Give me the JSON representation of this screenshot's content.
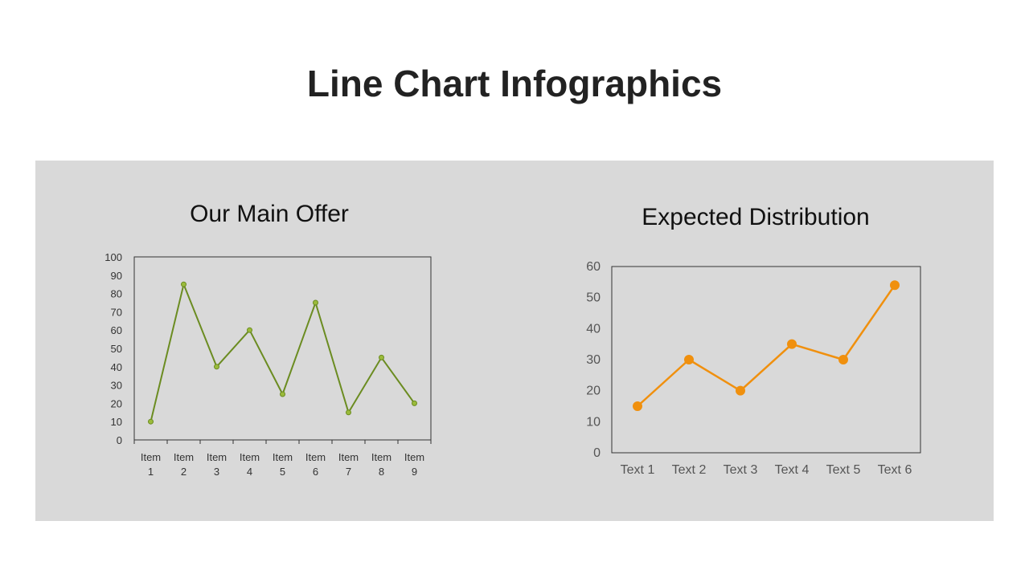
{
  "page": {
    "title": "Line Chart Infographics",
    "panel_color": "#d9d9d9"
  },
  "chart_data": [
    {
      "type": "line",
      "title": "Our Main Offer",
      "categories": [
        "Item 1",
        "Item 2",
        "Item 3",
        "Item 4",
        "Item 5",
        "Item 6",
        "Item 7",
        "Item 8",
        "Item 9"
      ],
      "series": [
        {
          "values": [
            10,
            85,
            40,
            60,
            25,
            75,
            15,
            45,
            20
          ],
          "color": "#6b8c21",
          "marker_color": "#9bbb3b"
        }
      ],
      "ylim": [
        0,
        100
      ],
      "yticks": [
        0,
        10,
        20,
        30,
        40,
        50,
        60,
        70,
        80,
        90,
        100
      ],
      "xlabel": "",
      "ylabel": "",
      "grid": false,
      "legend": "none"
    },
    {
      "type": "line",
      "title": "Expected Distribution",
      "categories": [
        "Text 1",
        "Text 2",
        "Text 3",
        "Text 4",
        "Text 5",
        "Text 6"
      ],
      "series": [
        {
          "values": [
            15,
            30,
            20,
            35,
            30,
            54
          ],
          "color": "#f0900e",
          "marker_color": "#f0900e"
        }
      ],
      "ylim": [
        0,
        60
      ],
      "yticks": [
        0,
        10,
        20,
        30,
        40,
        50,
        60
      ],
      "xlabel": "",
      "ylabel": "",
      "grid": false,
      "legend": "none"
    }
  ]
}
